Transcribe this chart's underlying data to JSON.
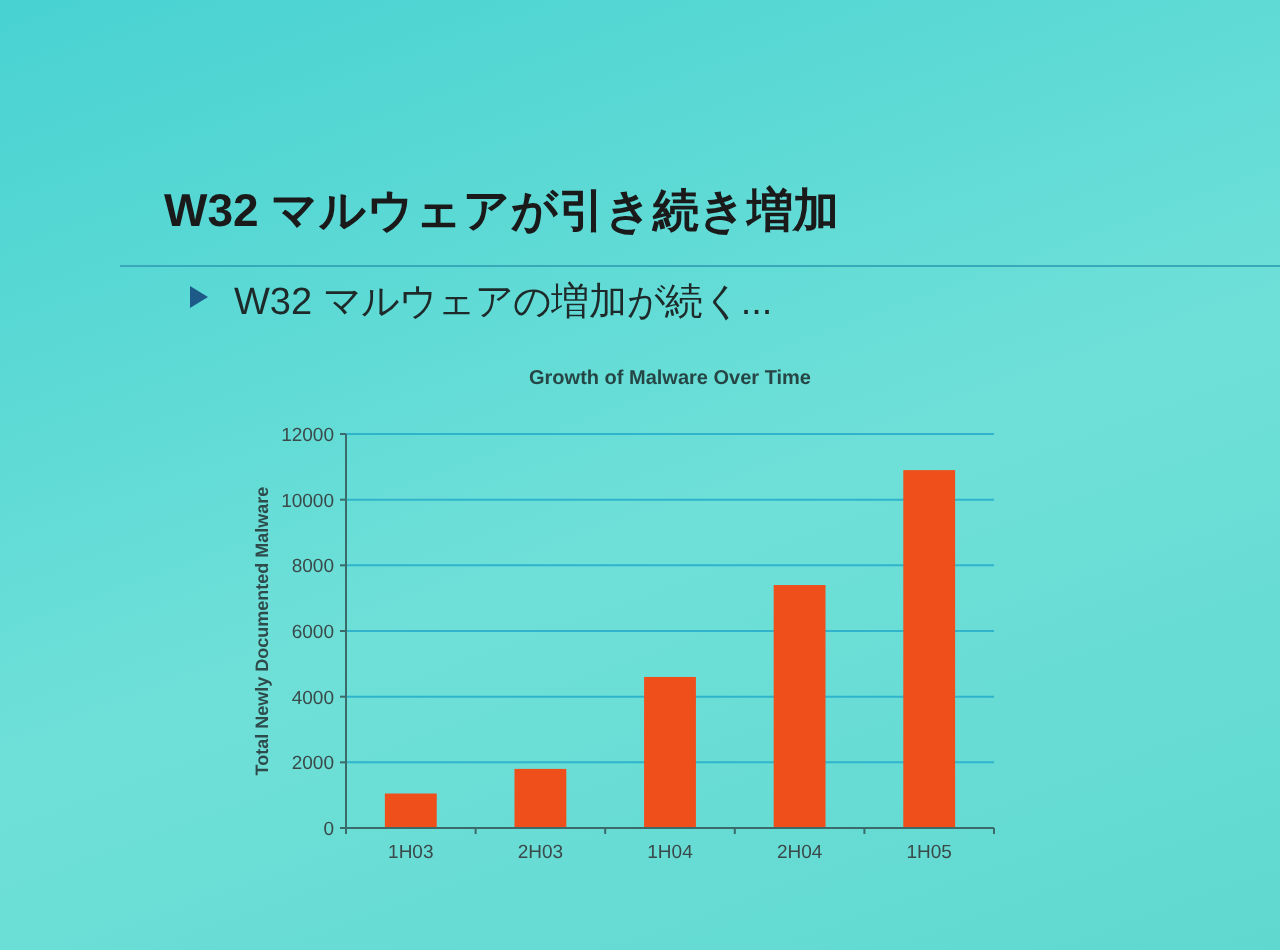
{
  "chart_data": {
    "type": "bar",
    "title": "W32 マルウェアが引き続き増加",
    "subtitle": "W32 マルウェアの増加が続く...",
    "annotations": [
      "Growth of Malware Over Time"
    ],
    "ylabel": "Total Newly Documented Malware",
    "categories": [
      "1H03",
      "2H03",
      "1H04",
      "2H04",
      "1H05"
    ],
    "values": [
      1050,
      1800,
      4600,
      7400,
      10900
    ],
    "color": "#ee4f1b",
    "ylim": [
      0,
      12000
    ],
    "yticks": [
      0,
      2000,
      4000,
      6000,
      8000,
      10000,
      12000
    ],
    "grid": "y"
  }
}
